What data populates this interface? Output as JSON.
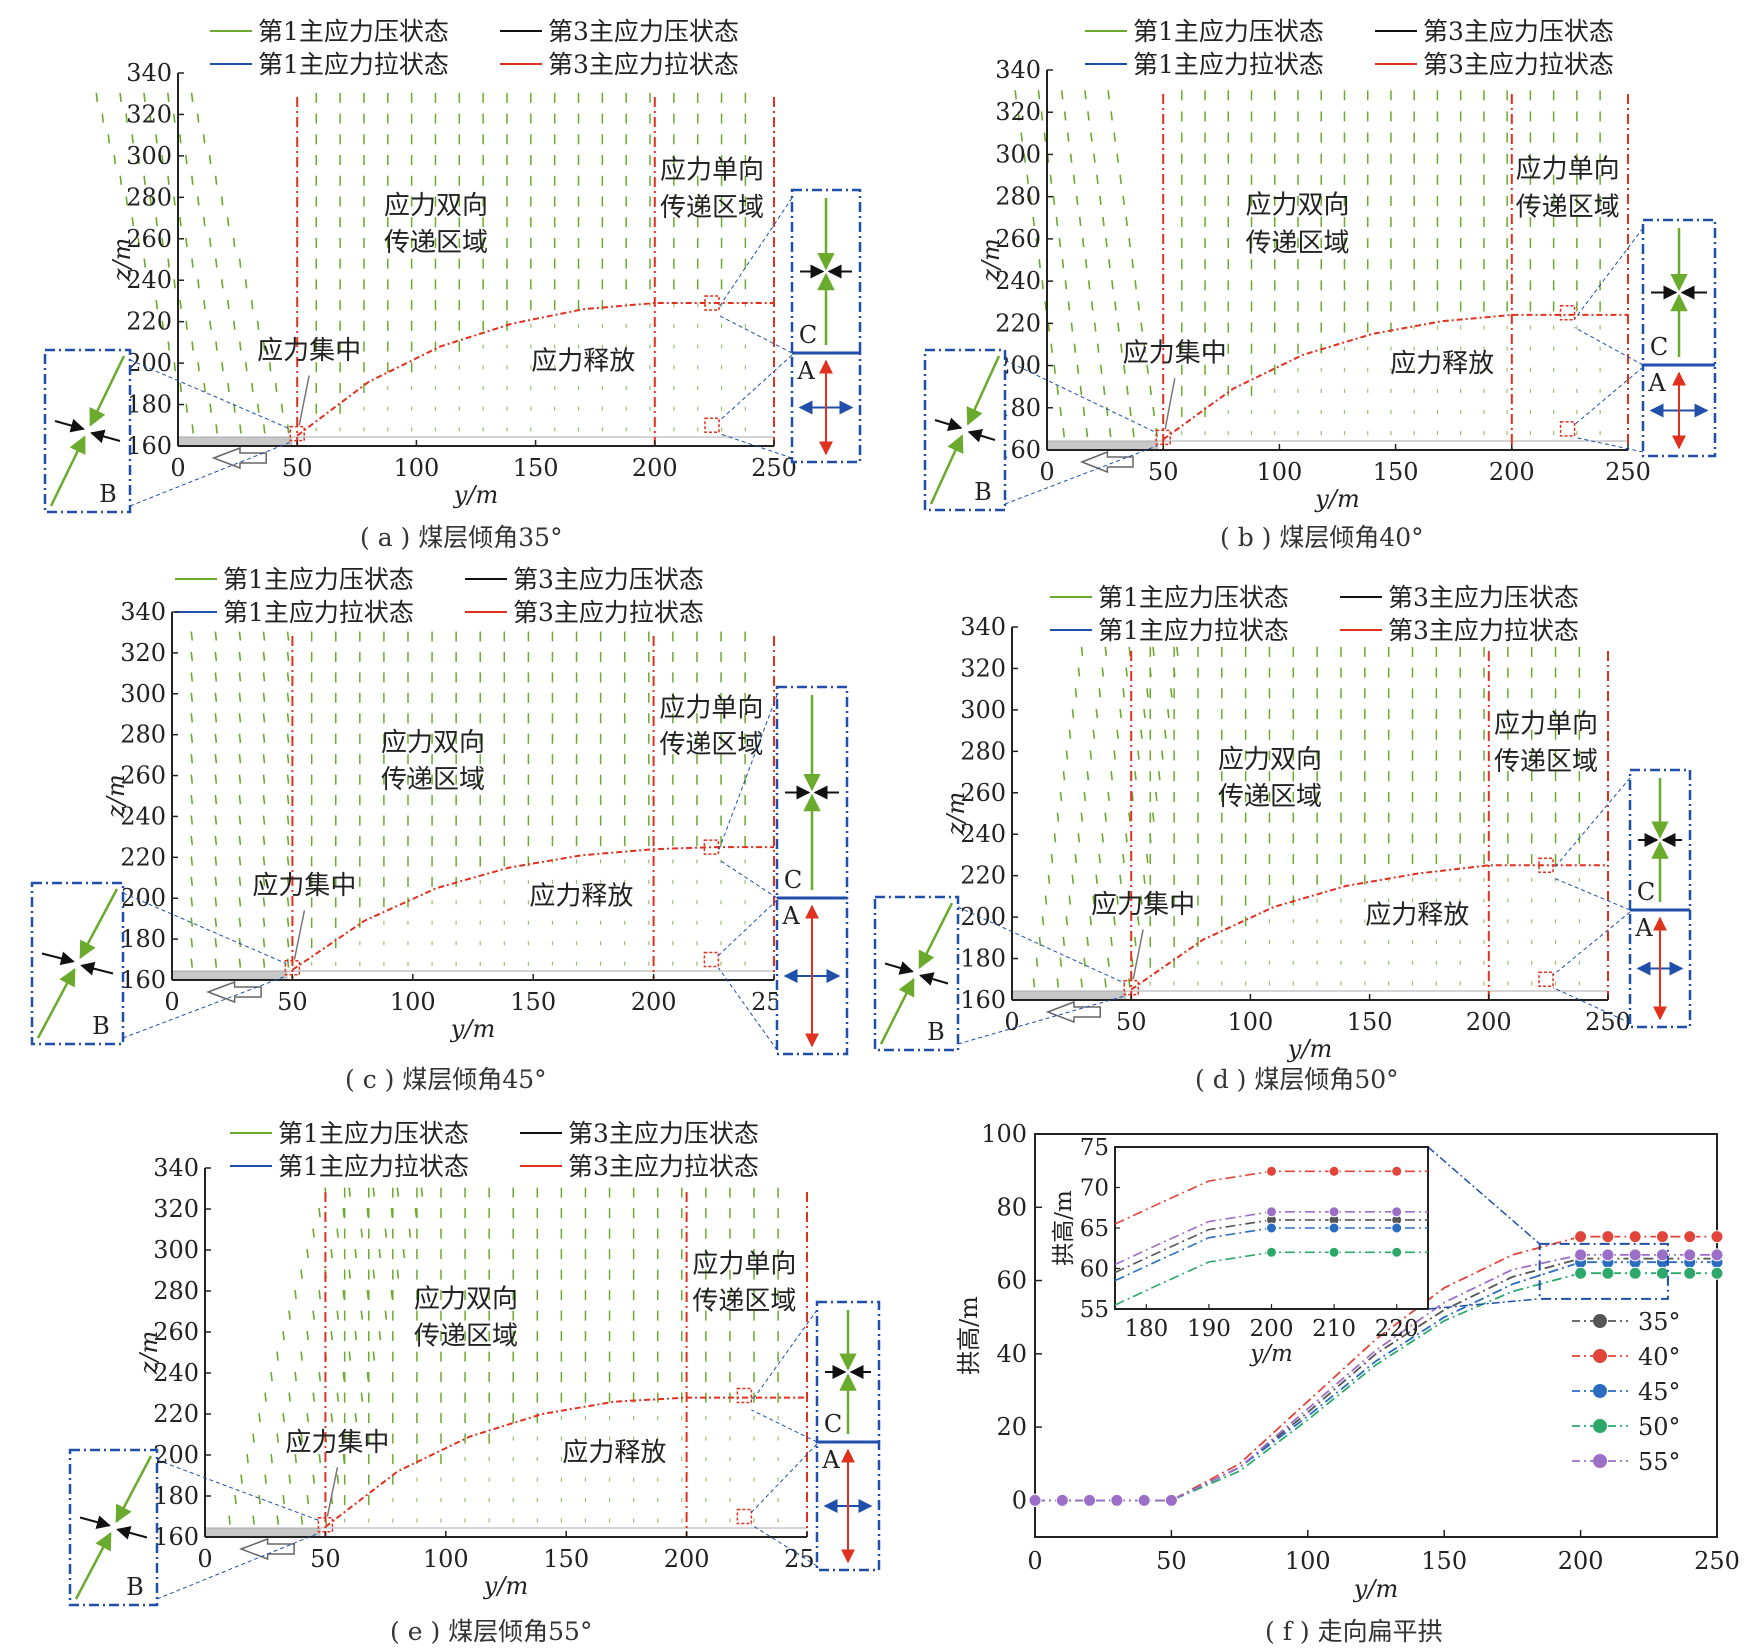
{
  "legend": {
    "p1_compress": "第1主应力压状态",
    "p1_tension": "第1主应力拉状态",
    "p3_compress": "第3主应力压状态",
    "p3_tension": "第3主应力拉状态"
  },
  "region_labels": {
    "bidirectional_line1": "应力双向",
    "bidirectional_line2": "传递区域",
    "unidirectional_line1": "应力单向",
    "unidirectional_line2": "传递区域",
    "concentration": "应力集中",
    "release": "应力释放"
  },
  "marker_labels": {
    "A": "A",
    "B": "B",
    "C": "C"
  },
  "colors": {
    "compress_green": "#6aaa2c",
    "tension_blue": "#1f4fa8",
    "compress_black": "#111111",
    "tension_red": "#e0301e",
    "axis": "#222222",
    "seam": "#c8c8c8",
    "dash_frame": "#1f4fa8"
  },
  "captions": {
    "a": "( a ) 煤层倾角35°",
    "b": "( b ) 煤层倾角40°",
    "c": "( c ) 煤层倾角45°",
    "d": "( d ) 煤层倾角50°",
    "e": "( e ) 煤层倾角55°",
    "f": "( f ) 走向扁平拱"
  },
  "chart_data": [
    {
      "id": "a",
      "type": "scatter",
      "xlabel": "y/m",
      "ylabel": "z/m",
      "xlim": [
        0,
        250
      ],
      "ylim": [
        160,
        340
      ],
      "xticks": [
        0,
        50,
        100,
        150,
        200,
        250
      ],
      "yticks": [
        160,
        180,
        200,
        220,
        240,
        260,
        280,
        300,
        320,
        340
      ],
      "seam_dip_deg": 35,
      "boundary_lines_y": [
        50,
        200,
        250
      ],
      "arch_curve": {
        "x": [
          50,
          80,
          110,
          140,
          170,
          200,
          225,
          250
        ],
        "z": [
          165,
          191,
          208,
          219,
          226,
          229,
          229,
          229
        ]
      },
      "arch_height_m": 229
    },
    {
      "id": "b",
      "type": "scatter",
      "xlabel": "y/m",
      "ylabel": "z/m",
      "xlim": [
        0,
        250
      ],
      "ylim": [
        160,
        340
      ],
      "xticks": [
        0,
        50,
        100,
        150,
        200,
        250
      ],
      "yticks": [
        160,
        180,
        200,
        220,
        240,
        260,
        280,
        300,
        320,
        340
      ],
      "seam_dip_deg": 40,
      "boundary_lines_y": [
        50,
        200,
        250
      ],
      "arch_curve": {
        "x": [
          50,
          80,
          110,
          140,
          170,
          200,
          225,
          250
        ],
        "z": [
          165,
          189,
          205,
          215,
          221,
          224,
          224,
          224
        ]
      },
      "arch_height_m": 224
    },
    {
      "id": "c",
      "type": "scatter",
      "xlabel": "y/m",
      "ylabel": "z/m",
      "xlim": [
        0,
        250
      ],
      "ylim": [
        160,
        340
      ],
      "xticks": [
        0,
        50,
        100,
        150,
        200,
        250
      ],
      "yticks": [
        160,
        180,
        200,
        220,
        240,
        260,
        280,
        300,
        320,
        340
      ],
      "seam_dip_deg": 45,
      "boundary_lines_y": [
        50,
        200,
        250
      ],
      "arch_curve": {
        "x": [
          50,
          80,
          110,
          140,
          170,
          200,
          225,
          250
        ],
        "z": [
          165,
          189,
          205,
          215,
          221,
          224,
          225,
          225
        ]
      },
      "arch_height_m": 225
    },
    {
      "id": "d",
      "type": "scatter",
      "xlabel": "y/m",
      "ylabel": "z/m",
      "xlim": [
        0,
        250
      ],
      "ylim": [
        160,
        340
      ],
      "xticks": [
        0,
        50,
        100,
        150,
        200,
        250
      ],
      "yticks": [
        160,
        180,
        200,
        220,
        240,
        260,
        280,
        300,
        320,
        340
      ],
      "seam_dip_deg": 50,
      "boundary_lines_y": [
        50,
        200,
        250
      ],
      "arch_curve": {
        "x": [
          50,
          80,
          110,
          140,
          170,
          200,
          225,
          250
        ],
        "z": [
          165,
          189,
          205,
          215,
          221,
          225,
          225,
          225
        ]
      },
      "arch_height_m": 225
    },
    {
      "id": "e",
      "type": "scatter",
      "xlabel": "y/m",
      "ylabel": "z/m",
      "xlim": [
        0,
        250
      ],
      "ylim": [
        160,
        340
      ],
      "xticks": [
        0,
        50,
        100,
        150,
        200,
        250
      ],
      "yticks": [
        160,
        180,
        200,
        220,
        240,
        260,
        280,
        300,
        320,
        340
      ],
      "seam_dip_deg": 55,
      "boundary_lines_y": [
        50,
        200,
        250
      ],
      "arch_curve": {
        "x": [
          50,
          80,
          110,
          140,
          170,
          200,
          225,
          250
        ],
        "z": [
          165,
          192,
          209,
          220,
          226,
          228,
          228,
          228
        ]
      },
      "arch_height_m": 228
    },
    {
      "id": "f",
      "type": "line",
      "xlabel": "y/m",
      "ylabel": "拱高/m",
      "xlim": [
        0,
        250
      ],
      "ylim": [
        -10,
        100
      ],
      "xticks": [
        0,
        50,
        100,
        150,
        200,
        250
      ],
      "yticks": [
        0,
        20,
        40,
        60,
        80,
        100
      ],
      "legend_placement": "right",
      "series": [
        {
          "name": "35°",
          "color": "#555555",
          "x": [
            0,
            10,
            20,
            30,
            40,
            50,
            75,
            100,
            125,
            150,
            175,
            200,
            210,
            220,
            230,
            240,
            250
          ],
          "y": [
            0,
            0,
            0,
            0,
            0,
            0,
            9,
            24,
            40,
            52,
            61,
            66,
            66,
            66,
            66,
            66,
            66
          ]
        },
        {
          "name": "40°",
          "color": "#e0443a",
          "x": [
            0,
            10,
            20,
            30,
            40,
            50,
            75,
            100,
            125,
            150,
            175,
            200,
            210,
            220,
            230,
            240,
            250
          ],
          "y": [
            0,
            0,
            0,
            0,
            0,
            0,
            10,
            27,
            44,
            58,
            67,
            72,
            72,
            72,
            72,
            72,
            72
          ]
        },
        {
          "name": "45°",
          "color": "#2a6cc0",
          "x": [
            0,
            10,
            20,
            30,
            40,
            50,
            75,
            100,
            125,
            150,
            175,
            200,
            210,
            220,
            230,
            240,
            250
          ],
          "y": [
            0,
            0,
            0,
            0,
            0,
            0,
            9,
            23,
            38,
            50,
            59,
            65,
            65,
            65,
            65,
            65,
            65
          ]
        },
        {
          "name": "50°",
          "color": "#2ca86a",
          "x": [
            0,
            10,
            20,
            30,
            40,
            50,
            75,
            100,
            125,
            150,
            175,
            200,
            210,
            220,
            230,
            240,
            250
          ],
          "y": [
            0,
            0,
            0,
            0,
            0,
            0,
            8,
            22,
            37,
            49,
            57,
            62,
            62,
            62,
            62,
            62,
            62
          ]
        },
        {
          "name": "55°",
          "color": "#9b6fc8",
          "x": [
            0,
            10,
            20,
            30,
            40,
            50,
            75,
            100,
            125,
            150,
            175,
            200,
            210,
            220,
            230,
            240,
            250
          ],
          "y": [
            0,
            0,
            0,
            0,
            0,
            0,
            9,
            25,
            41,
            54,
            63,
            67,
            67,
            67,
            67,
            67,
            67
          ]
        }
      ],
      "inset": {
        "xlim": [
          175,
          225
        ],
        "ylim": [
          55,
          75
        ],
        "xticks": [
          180,
          190,
          200,
          210,
          220
        ],
        "yticks": [
          55,
          60,
          65,
          70,
          75
        ],
        "xlabel": "y/m",
        "ylabel": "拱高/m"
      }
    }
  ]
}
